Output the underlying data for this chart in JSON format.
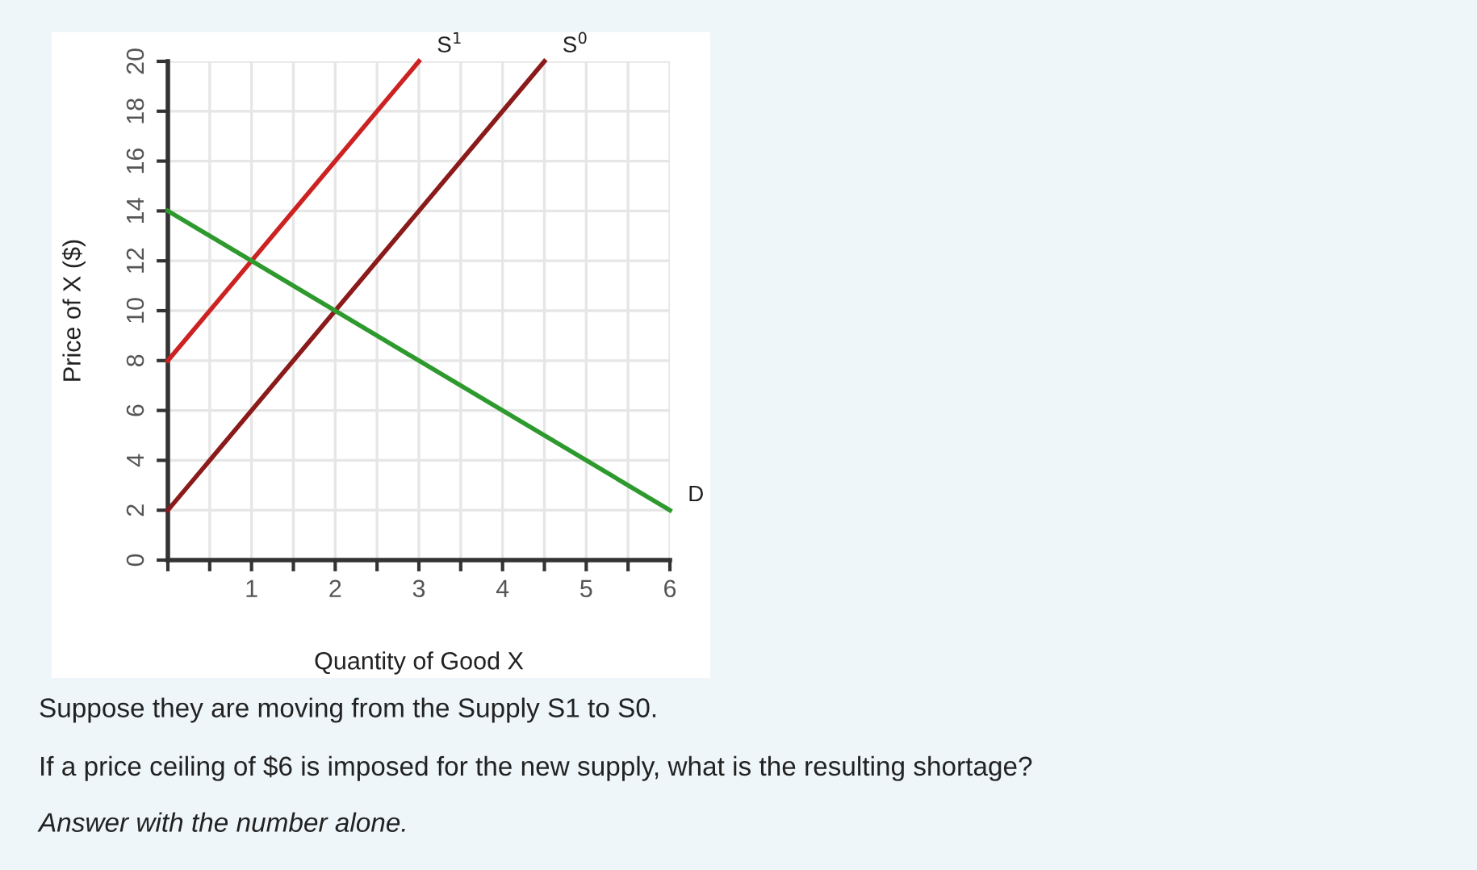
{
  "chart_data": {
    "type": "line",
    "xlabel": "Quantity of Good X",
    "ylabel": "Price of X ($)",
    "series": [
      {
        "name": "S$^{1}$",
        "color": "#cc2222",
        "x": [
          0,
          3
        ],
        "values": [
          8,
          20
        ]
      },
      {
        "name": "S$^{0}$",
        "color": "#8b1a1a",
        "x": [
          0,
          4.5
        ],
        "values": [
          2,
          20
        ]
      },
      {
        "name": "D",
        "color": "#2e9a2e",
        "x": [
          0,
          6
        ],
        "values": [
          14,
          2
        ]
      }
    ],
    "xlim": [
      0,
      6
    ],
    "ylim": [
      0,
      20
    ],
    "xticks": [
      {
        "value": 0,
        "label": null
      },
      {
        "value": 0.5,
        "label": null
      },
      1,
      {
        "value": 1.5,
        "label": null
      },
      2,
      {
        "value": 2.5,
        "label": null
      },
      3,
      {
        "value": 3.5,
        "label": null
      },
      4,
      {
        "value": 4.5,
        "label": null
      },
      5,
      {
        "value": 5.5,
        "label": null
      },
      6
    ],
    "yticks": [
      0,
      2,
      4,
      6,
      8,
      10,
      12,
      14,
      16,
      18,
      20
    ],
    "grid": true,
    "marker": "none",
    "line_style": "solid",
    "annotations": [
      "Suppose they are moving from the Supply S1 to S0.",
      "If a price ceiling of $6 is imposed for the new supply, what is the resulting shortage?",
      "Answer with the number alone."
    ]
  }
}
